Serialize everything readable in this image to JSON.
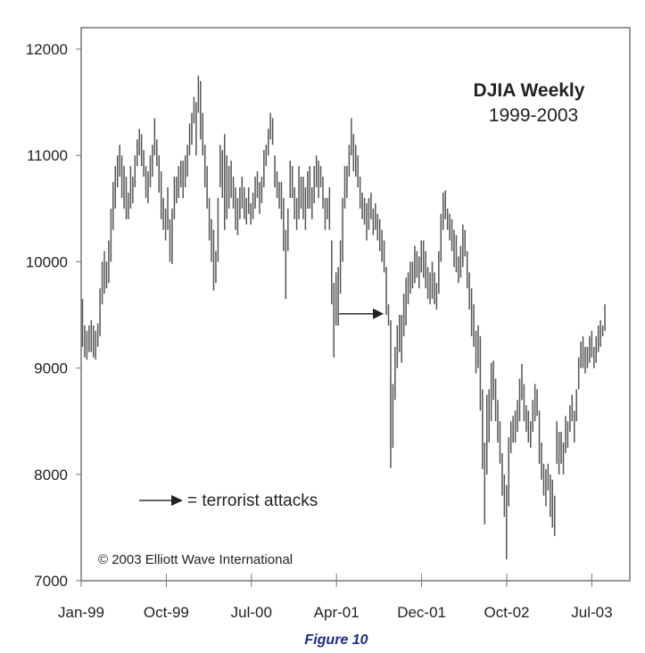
{
  "chart_data": {
    "type": "bar",
    "subtype": "high-low weekly bars",
    "title": "DJIA Weekly",
    "subtitle": "1999-2003",
    "xlabel": "",
    "ylabel": "",
    "ylim": [
      7000,
      12200
    ],
    "yticks": [
      7000,
      8000,
      9000,
      10000,
      11000,
      12000
    ],
    "xtick_labels": [
      "Jan-99",
      "Oct-99",
      "Jul-00",
      "Apr-01",
      "Dec-01",
      "Oct-02",
      "Jul-03"
    ],
    "grid": false,
    "first_week": "1999-01-08",
    "interval": "weekly",
    "bar_color": "#555555",
    "bars_high_low": [
      [
        9650,
        9200
      ],
      [
        9400,
        9100
      ],
      [
        9350,
        9080
      ],
      [
        9400,
        9150
      ],
      [
        9450,
        9150
      ],
      [
        9400,
        9100
      ],
      [
        9350,
        9080
      ],
      [
        9420,
        9200
      ],
      [
        9750,
        9300
      ],
      [
        10000,
        9600
      ],
      [
        10100,
        9700
      ],
      [
        10000,
        9750
      ],
      [
        10200,
        9800
      ],
      [
        10500,
        10000
      ],
      [
        10750,
        10300
      ],
      [
        10900,
        10500
      ],
      [
        11000,
        10700
      ],
      [
        11100,
        10800
      ],
      [
        11000,
        10600
      ],
      [
        10900,
        10500
      ],
      [
        10800,
        10400
      ],
      [
        10650,
        10400
      ],
      [
        10900,
        10500
      ],
      [
        10800,
        10550
      ],
      [
        11000,
        10700
      ],
      [
        11150,
        10900
      ],
      [
        11250,
        11000
      ],
      [
        11200,
        10900
      ],
      [
        11050,
        10800
      ],
      [
        10900,
        10600
      ],
      [
        10850,
        10550
      ],
      [
        11000,
        10700
      ],
      [
        11100,
        10800
      ],
      [
        11350,
        11000
      ],
      [
        11150,
        10900
      ],
      [
        11000,
        10650
      ],
      [
        10850,
        10400
      ],
      [
        10600,
        10300
      ],
      [
        10500,
        10200
      ],
      [
        10700,
        10300
      ],
      [
        10400,
        10000
      ],
      [
        10500,
        9980
      ],
      [
        10800,
        10400
      ],
      [
        10800,
        10550
      ],
      [
        10900,
        10600
      ],
      [
        10950,
        10700
      ],
      [
        10950,
        10600
      ],
      [
        11000,
        10700
      ],
      [
        11100,
        10800
      ],
      [
        11300,
        11000
      ],
      [
        11400,
        11100
      ],
      [
        11550,
        11300
      ],
      [
        11500,
        11000
      ],
      [
        11750,
        11400
      ],
      [
        11700,
        11150
      ],
      [
        11400,
        11000
      ],
      [
        11100,
        10700
      ],
      [
        10900,
        10500
      ],
      [
        10600,
        10200
      ],
      [
        10400,
        10000
      ],
      [
        10300,
        9730
      ],
      [
        10100,
        9800
      ],
      [
        10600,
        10000
      ],
      [
        11100,
        10700
      ],
      [
        11050,
        10600
      ],
      [
        11200,
        10300
      ],
      [
        11000,
        10400
      ],
      [
        10900,
        10500
      ],
      [
        10950,
        10600
      ],
      [
        10800,
        10500
      ],
      [
        10700,
        10300
      ],
      [
        10600,
        10250
      ],
      [
        10700,
        10400
      ],
      [
        10800,
        10500
      ],
      [
        10700,
        10400
      ],
      [
        10600,
        10350
      ],
      [
        10700,
        10450
      ],
      [
        10550,
        10350
      ],
      [
        10650,
        10400
      ],
      [
        10800,
        10500
      ],
      [
        10850,
        10600
      ],
      [
        10750,
        10450
      ],
      [
        10800,
        10550
      ],
      [
        11050,
        10700
      ],
      [
        11100,
        10900
      ],
      [
        11250,
        11000
      ],
      [
        11400,
        11150
      ],
      [
        11350,
        11100
      ],
      [
        11000,
        10700
      ],
      [
        10850,
        10600
      ],
      [
        10750,
        10500
      ],
      [
        10750,
        10400
      ],
      [
        10600,
        10100
      ],
      [
        10300,
        9650
      ],
      [
        10500,
        10100
      ],
      [
        10950,
        10600
      ],
      [
        10900,
        10600
      ],
      [
        10700,
        10400
      ],
      [
        10600,
        10300
      ],
      [
        10900,
        10400
      ],
      [
        10800,
        10500
      ],
      [
        10800,
        10400
      ],
      [
        10700,
        10300
      ],
      [
        10850,
        10500
      ],
      [
        10900,
        10500
      ],
      [
        10700,
        10400
      ],
      [
        10900,
        10550
      ],
      [
        11000,
        10700
      ],
      [
        10950,
        10600
      ],
      [
        10900,
        10700
      ],
      [
        10800,
        10500
      ],
      [
        10600,
        10300
      ],
      [
        10600,
        10400
      ],
      [
        10700,
        10300
      ],
      [
        10200,
        9600
      ],
      [
        9800,
        9100
      ],
      [
        9900,
        9400
      ],
      [
        9950,
        9400
      ],
      [
        10200,
        9700
      ],
      [
        10600,
        10000
      ],
      [
        10900,
        10500
      ],
      [
        10900,
        10600
      ],
      [
        11100,
        10800
      ],
      [
        11350,
        11000
      ],
      [
        11200,
        10850
      ],
      [
        11100,
        10800
      ],
      [
        11000,
        10700
      ],
      [
        10800,
        10500
      ],
      [
        10650,
        10400
      ],
      [
        10600,
        10350
      ],
      [
        10550,
        10200
      ],
      [
        10600,
        10300
      ],
      [
        10650,
        10400
      ],
      [
        10500,
        10250
      ],
      [
        10550,
        10300
      ],
      [
        10450,
        10200
      ],
      [
        10400,
        10100
      ],
      [
        10300,
        10000
      ],
      [
        10200,
        9900
      ],
      [
        9950,
        9500
      ],
      [
        9600,
        9400
      ],
      [
        9450,
        8060
      ],
      [
        8850,
        8250
      ],
      [
        9200,
        8700
      ],
      [
        9400,
        9000
      ],
      [
        9500,
        9150
      ],
      [
        9500,
        9050
      ],
      [
        9700,
        9300
      ],
      [
        9850,
        9400
      ],
      [
        9900,
        9600
      ],
      [
        10000,
        9700
      ],
      [
        10000,
        9750
      ],
      [
        10150,
        9800
      ],
      [
        10100,
        9850
      ],
      [
        10050,
        9750
      ],
      [
        10200,
        9900
      ],
      [
        10200,
        9850
      ],
      [
        10100,
        9750
      ],
      [
        9950,
        9650
      ],
      [
        9900,
        9600
      ],
      [
        10000,
        9650
      ],
      [
        9900,
        9600
      ],
      [
        9800,
        9550
      ],
      [
        10100,
        9700
      ],
      [
        10450,
        10000
      ],
      [
        10650,
        10300
      ],
      [
        10670,
        10400
      ],
      [
        10500,
        10300
      ],
      [
        10450,
        10200
      ],
      [
        10400,
        10100
      ],
      [
        10300,
        9950
      ],
      [
        10250,
        9900
      ],
      [
        10050,
        9800
      ],
      [
        10150,
        9850
      ],
      [
        10350,
        9950
      ],
      [
        10300,
        10050
      ],
      [
        10100,
        9750
      ],
      [
        9900,
        9550
      ],
      [
        9750,
        9300
      ],
      [
        9600,
        9200
      ],
      [
        9350,
        8950
      ],
      [
        9400,
        9000
      ],
      [
        9300,
        8600
      ],
      [
        8800,
        8050
      ],
      [
        8300,
        7530
      ],
      [
        8750,
        8000
      ],
      [
        8800,
        8300
      ],
      [
        9050,
        8500
      ],
      [
        9070,
        8700
      ],
      [
        8900,
        8500
      ],
      [
        8700,
        8300
      ],
      [
        8500,
        8100
      ],
      [
        8200,
        7800
      ],
      [
        8000,
        7600
      ],
      [
        7900,
        7200
      ],
      [
        8350,
        7700
      ],
      [
        8500,
        8200
      ],
      [
        8550,
        8300
      ],
      [
        8600,
        8300
      ],
      [
        8700,
        8400
      ],
      [
        8900,
        8500
      ],
      [
        9040,
        8700
      ],
      [
        8850,
        8500
      ],
      [
        8650,
        8400
      ],
      [
        8600,
        8300
      ],
      [
        8500,
        8250
      ],
      [
        8700,
        8400
      ],
      [
        8850,
        8500
      ],
      [
        8800,
        8550
      ],
      [
        8600,
        8100
      ],
      [
        8300,
        7950
      ],
      [
        8100,
        7800
      ],
      [
        8050,
        7700
      ],
      [
        8100,
        7850
      ],
      [
        8000,
        7600
      ],
      [
        7950,
        7500
      ],
      [
        7800,
        7420
      ],
      [
        8500,
        8100
      ],
      [
        8400,
        8000
      ],
      [
        8400,
        8100
      ],
      [
        8300,
        8000
      ],
      [
        8550,
        8200
      ],
      [
        8500,
        8250
      ],
      [
        8650,
        8400
      ],
      [
        8750,
        8500
      ],
      [
        8600,
        8300
      ],
      [
        8800,
        8500
      ],
      [
        9100,
        8800
      ],
      [
        9250,
        9000
      ],
      [
        9300,
        9000
      ],
      [
        9200,
        8950
      ],
      [
        9200,
        9000
      ],
      [
        9300,
        9050
      ],
      [
        9350,
        9100
      ],
      [
        9200,
        9000
      ],
      [
        9300,
        9050
      ],
      [
        9400,
        9150
      ],
      [
        9450,
        9200
      ],
      [
        9400,
        9300
      ],
      [
        9600,
        9350
      ]
    ],
    "annotations": [
      {
        "type": "arrow",
        "points_to_week": "2001-09-07",
        "value": 9510,
        "meaning": "terrorist attacks"
      }
    ],
    "legend": {
      "symbol": "arrow",
      "text": "= terrorist attacks",
      "placement": "bottom-left"
    },
    "copyright": "© 2003 Elliott Wave International"
  },
  "caption": "Figure 10"
}
